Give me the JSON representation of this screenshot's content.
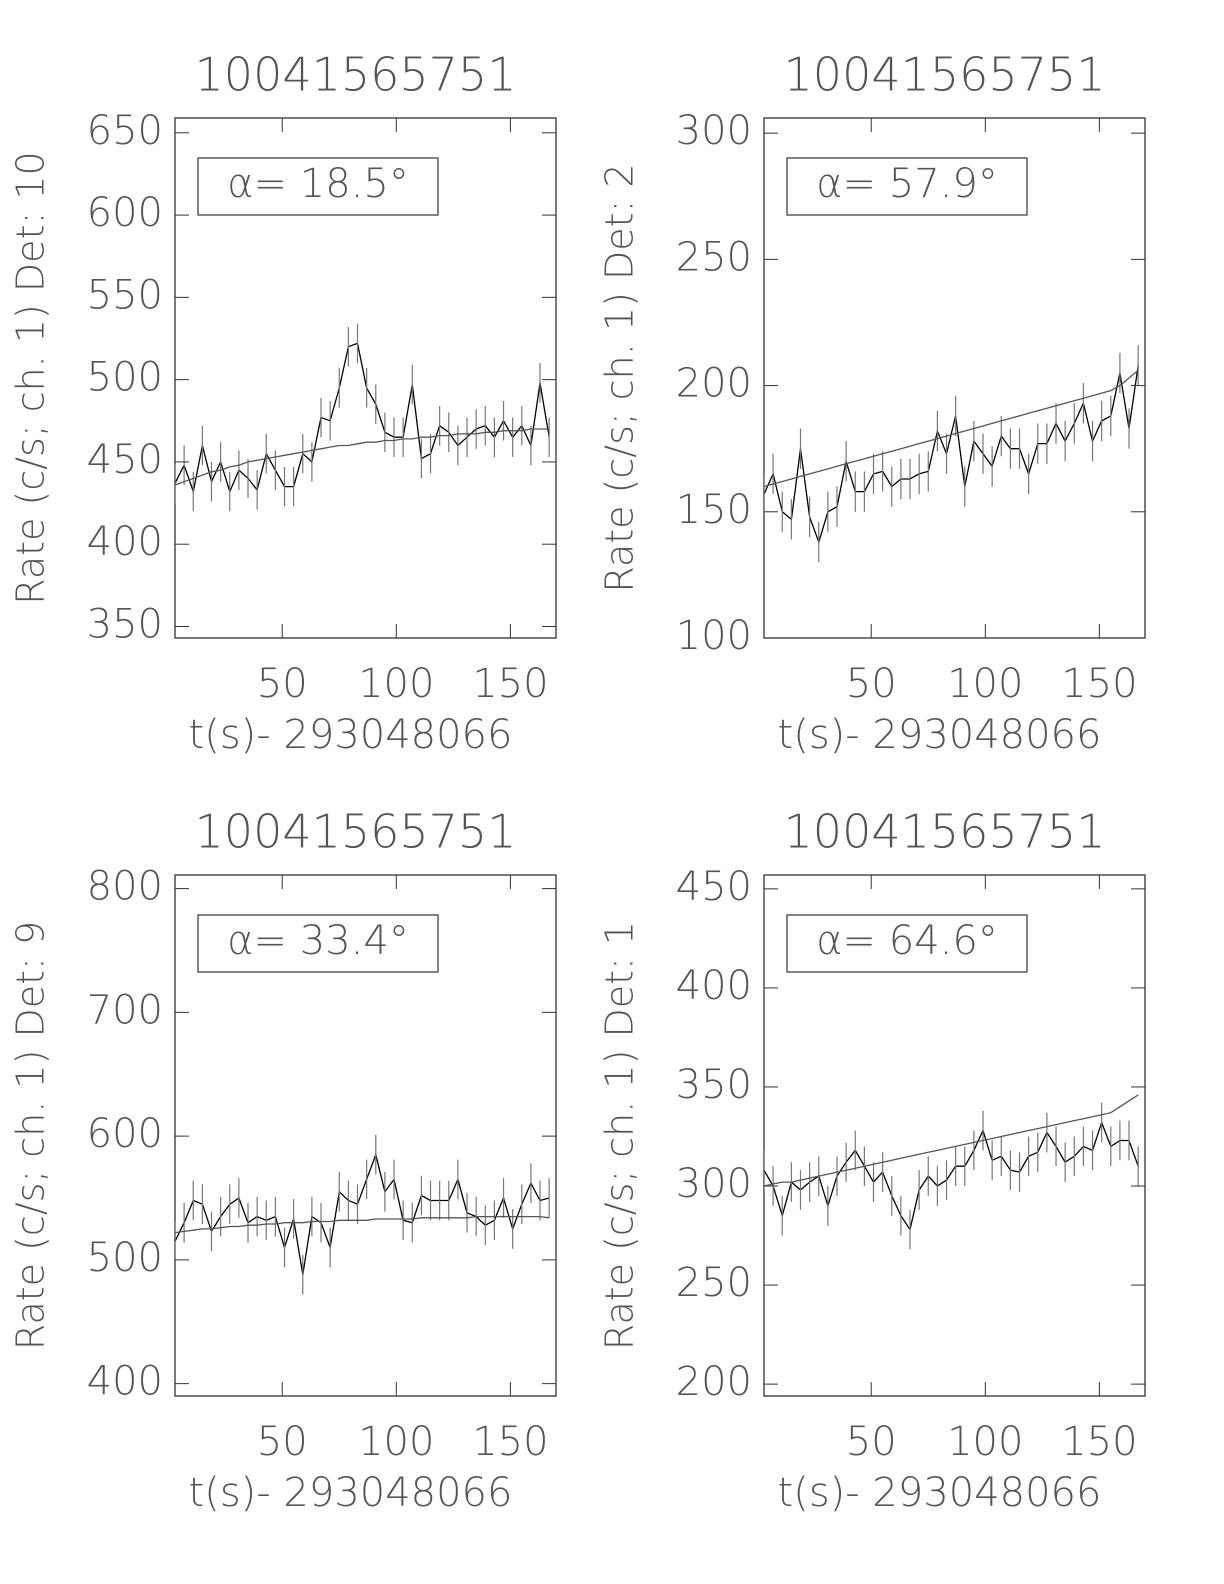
{
  "chart_data": [
    {
      "type": "line",
      "title": "10041565751",
      "xlabel": "t(s)- 293048066",
      "ylabel": "Rate (c/s; ch. 1) Det: 10",
      "annotation": "α= 18.5°",
      "xlim": [
        3,
        170
      ],
      "xticks": [
        50,
        100,
        150
      ],
      "ylim": [
        343,
        659
      ],
      "yticks": [
        350,
        400,
        450,
        500,
        550,
        600,
        650
      ],
      "x": [
        3,
        7,
        11,
        15,
        19,
        23,
        27,
        31,
        35,
        39,
        43,
        47,
        51,
        55,
        59,
        63,
        67,
        71,
        75,
        79,
        83,
        87,
        91,
        95,
        99,
        103,
        107,
        111,
        115,
        119,
        123,
        127,
        131,
        135,
        139,
        143,
        147,
        151,
        155,
        159,
        163,
        167
      ],
      "series": [
        {
          "color": "#000000",
          "values": [
            437,
            448,
            432,
            460,
            438,
            450,
            432,
            445,
            440,
            433,
            455,
            445,
            435,
            435,
            455,
            450,
            477,
            475,
            495,
            520,
            522,
            495,
            485,
            468,
            465,
            465,
            497,
            452,
            455,
            472,
            468,
            460,
            465,
            470,
            472,
            465,
            475,
            465,
            472,
            460,
            498,
            465
          ],
          "errors": [
            12,
            12,
            12,
            12,
            12,
            12,
            12,
            12,
            12,
            12,
            12,
            12,
            12,
            12,
            12,
            12,
            12,
            12,
            12,
            12,
            12,
            12,
            12,
            12,
            12,
            12,
            12,
            12,
            12,
            12,
            12,
            12,
            12,
            12,
            12,
            12,
            12,
            12,
            12,
            12,
            12,
            12
          ]
        },
        {
          "color": "#555555",
          "values": [
            436,
            438,
            440,
            442,
            444,
            445,
            447,
            448,
            450,
            451,
            452,
            453,
            454,
            455,
            456,
            457,
            458,
            459,
            460,
            460,
            461,
            462,
            462,
            463,
            463,
            464,
            464,
            465,
            465,
            466,
            466,
            467,
            467,
            467,
            468,
            468,
            469,
            469,
            469,
            470,
            470,
            470
          ]
        }
      ]
    },
    {
      "type": "line",
      "title": "10041565751",
      "xlabel": "t(s)- 293048066",
      "ylabel": "Rate (c/s; ch. 1) Det: 2",
      "annotation": "α= 57.9°",
      "xlim": [
        3,
        170
      ],
      "xticks": [
        50,
        100,
        150
      ],
      "ylim": [
        100,
        306
      ],
      "yticks": [
        100,
        150,
        200,
        250,
        300
      ],
      "x": [
        3,
        7,
        11,
        15,
        19,
        23,
        27,
        31,
        35,
        39,
        43,
        47,
        51,
        55,
        59,
        63,
        67,
        71,
        75,
        79,
        83,
        87,
        91,
        95,
        99,
        103,
        107,
        111,
        115,
        119,
        123,
        127,
        131,
        135,
        139,
        143,
        147,
        151,
        155,
        159,
        163,
        167
      ],
      "series": [
        {
          "color": "#000000",
          "values": [
            157,
            165,
            150,
            147,
            175,
            148,
            138,
            150,
            152,
            170,
            158,
            158,
            165,
            166,
            160,
            163,
            163,
            165,
            166,
            182,
            173,
            188,
            160,
            178,
            173,
            168,
            180,
            175,
            175,
            165,
            177,
            177,
            185,
            178,
            185,
            193,
            178,
            186,
            188,
            205,
            183,
            208
          ],
          "errors": [
            8,
            8,
            8,
            8,
            8,
            8,
            8,
            8,
            8,
            8,
            8,
            8,
            8,
            8,
            8,
            8,
            8,
            8,
            8,
            8,
            8,
            8,
            8,
            8,
            8,
            8,
            8,
            8,
            8,
            8,
            8,
            8,
            8,
            8,
            8,
            8,
            8,
            8,
            8,
            8,
            8,
            8
          ]
        },
        {
          "color": "#555555",
          "values": [
            160,
            161,
            162,
            163,
            164,
            165,
            166,
            167,
            168,
            169,
            170,
            171,
            172,
            173,
            174,
            175,
            176,
            177,
            178,
            179,
            180,
            181,
            182,
            183,
            184,
            185,
            186,
            187,
            188,
            189,
            190,
            191,
            192,
            193,
            194,
            195,
            196,
            197,
            198,
            200,
            203,
            206
          ]
        }
      ]
    },
    {
      "type": "line",
      "title": "10041565751",
      "xlabel": "t(s)- 293048066",
      "ylabel": "Rate (c/s; ch. 1) Det: 9",
      "annotation": "α= 33.4°",
      "xlim": [
        3,
        170
      ],
      "xticks": [
        50,
        100,
        150
      ],
      "ylim": [
        390,
        811
      ],
      "yticks": [
        400,
        500,
        600,
        700,
        800
      ],
      "x": [
        3,
        7,
        11,
        15,
        19,
        23,
        27,
        31,
        35,
        39,
        43,
        47,
        51,
        55,
        59,
        63,
        67,
        71,
        75,
        79,
        83,
        87,
        91,
        95,
        99,
        103,
        107,
        111,
        115,
        119,
        123,
        127,
        131,
        135,
        139,
        143,
        147,
        151,
        155,
        159,
        163,
        167
      ],
      "series": [
        {
          "color": "#000000",
          "values": [
            515,
            530,
            548,
            545,
            523,
            535,
            545,
            550,
            530,
            535,
            532,
            535,
            510,
            533,
            488,
            535,
            530,
            510,
            555,
            548,
            545,
            565,
            585,
            555,
            565,
            532,
            530,
            552,
            548,
            548,
            548,
            565,
            538,
            535,
            528,
            532,
            550,
            525,
            545,
            562,
            548,
            550
          ],
          "errors": [
            16,
            16,
            16,
            16,
            16,
            16,
            16,
            16,
            16,
            16,
            16,
            16,
            16,
            16,
            16,
            16,
            16,
            16,
            16,
            16,
            16,
            16,
            16,
            16,
            16,
            16,
            16,
            16,
            16,
            16,
            16,
            16,
            16,
            16,
            16,
            16,
            16,
            16,
            16,
            16,
            16,
            16
          ]
        },
        {
          "color": "#555555",
          "values": [
            522,
            523,
            524,
            525,
            525,
            526,
            527,
            527,
            528,
            528,
            529,
            529,
            530,
            530,
            530,
            531,
            531,
            531,
            532,
            532,
            532,
            532,
            533,
            533,
            533,
            533,
            533,
            534,
            534,
            534,
            534,
            534,
            534,
            535,
            535,
            535,
            535,
            535,
            535,
            535,
            535,
            534
          ]
        }
      ]
    },
    {
      "type": "line",
      "title": "10041565751",
      "xlabel": "t(s)- 293048066",
      "ylabel": "Rate (c/s; ch. 1) Det: 1",
      "annotation": "α= 64.6°",
      "xlim": [
        3,
        170
      ],
      "xticks": [
        50,
        100,
        150
      ],
      "ylim": [
        194,
        457
      ],
      "yticks": [
        200,
        250,
        300,
        350,
        400,
        450
      ],
      "x": [
        3,
        7,
        11,
        15,
        19,
        23,
        27,
        31,
        35,
        39,
        43,
        47,
        51,
        55,
        59,
        63,
        67,
        71,
        75,
        79,
        83,
        87,
        91,
        95,
        99,
        103,
        107,
        111,
        115,
        119,
        123,
        127,
        131,
        135,
        139,
        143,
        147,
        151,
        155,
        159,
        163,
        167
      ],
      "series": [
        {
          "color": "#000000",
          "values": [
            308,
            300,
            285,
            302,
            298,
            302,
            305,
            290,
            305,
            312,
            318,
            310,
            302,
            307,
            295,
            285,
            278,
            298,
            305,
            300,
            303,
            310,
            310,
            318,
            328,
            313,
            315,
            308,
            307,
            315,
            317,
            327,
            320,
            312,
            315,
            320,
            318,
            332,
            320,
            323,
            323,
            310
          ],
          "errors": [
            10,
            10,
            10,
            10,
            10,
            10,
            10,
            10,
            10,
            10,
            10,
            10,
            10,
            10,
            10,
            10,
            10,
            10,
            10,
            10,
            10,
            10,
            10,
            10,
            10,
            10,
            10,
            10,
            10,
            10,
            10,
            10,
            10,
            10,
            10,
            10,
            10,
            10,
            10,
            10,
            10,
            10
          ]
        },
        {
          "color": "#555555",
          "values": [
            300,
            301,
            302,
            302,
            303,
            304,
            305,
            306,
            307,
            308,
            309,
            310,
            311,
            312,
            313,
            314,
            315,
            316,
            317,
            318,
            319,
            320,
            321,
            322,
            323,
            324,
            325,
            326,
            327,
            328,
            329,
            330,
            331,
            332,
            333,
            334,
            335,
            336,
            337,
            340,
            343,
            346
          ]
        }
      ]
    }
  ]
}
